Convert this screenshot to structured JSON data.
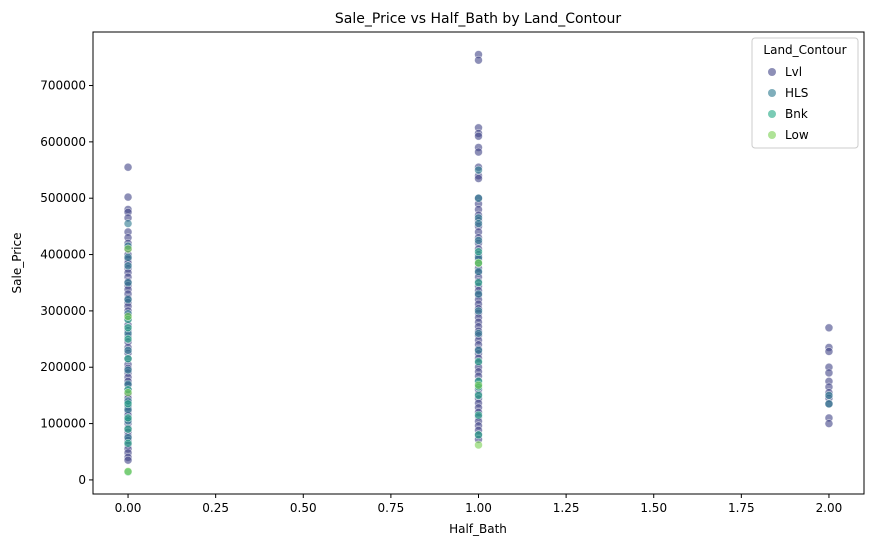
{
  "chart_data": {
    "type": "scatter",
    "title": "Sale_Price vs Half_Bath by Land_Contour",
    "xlabel": "Half_Bath",
    "ylabel": "Sale_Price",
    "xlim": [
      -0.1,
      2.1
    ],
    "ylim": [
      -25000,
      795000
    ],
    "x_ticks": [
      0.0,
      0.25,
      0.5,
      0.75,
      1.0,
      1.25,
      1.5,
      1.75,
      2.0
    ],
    "x_tick_labels": [
      "0.00",
      "0.25",
      "0.50",
      "0.75",
      "1.00",
      "1.25",
      "1.50",
      "1.75",
      "2.00"
    ],
    "y_ticks": [
      0,
      100000,
      200000,
      300000,
      400000,
      500000,
      600000,
      700000
    ],
    "y_tick_labels": [
      "0",
      "100000",
      "200000",
      "300000",
      "400000",
      "500000",
      "600000",
      "700000"
    ],
    "grid": false,
    "legend": {
      "title": "Land_Contour",
      "placement": "top-right"
    },
    "marker_alpha": 0.6,
    "series": [
      {
        "name": "Lvl",
        "color": "#414487",
        "points": [
          [
            0,
            555000
          ],
          [
            0,
            502000
          ],
          [
            0,
            480000
          ],
          [
            0,
            475000
          ],
          [
            0,
            465000
          ],
          [
            0,
            440000
          ],
          [
            0,
            430000
          ],
          [
            0,
            420000
          ],
          [
            0,
            410000
          ],
          [
            0,
            400000
          ],
          [
            0,
            392000
          ],
          [
            0,
            385000
          ],
          [
            0,
            375000
          ],
          [
            0,
            368000
          ],
          [
            0,
            360000
          ],
          [
            0,
            352000
          ],
          [
            0,
            345000
          ],
          [
            0,
            338000
          ],
          [
            0,
            330000
          ],
          [
            0,
            322000
          ],
          [
            0,
            315000
          ],
          [
            0,
            308000
          ],
          [
            0,
            300000
          ],
          [
            0,
            292000
          ],
          [
            0,
            285000
          ],
          [
            0,
            275000
          ],
          [
            0,
            265000
          ],
          [
            0,
            255000
          ],
          [
            0,
            245000
          ],
          [
            0,
            235000
          ],
          [
            0,
            225000
          ],
          [
            0,
            215000
          ],
          [
            0,
            205000
          ],
          [
            0,
            198000
          ],
          [
            0,
            190000
          ],
          [
            0,
            182000
          ],
          [
            0,
            175000
          ],
          [
            0,
            168000
          ],
          [
            0,
            160000
          ],
          [
            0,
            152000
          ],
          [
            0,
            145000
          ],
          [
            0,
            138000
          ],
          [
            0,
            130000
          ],
          [
            0,
            122000
          ],
          [
            0,
            115000
          ],
          [
            0,
            108000
          ],
          [
            0,
            100000
          ],
          [
            0,
            92000
          ],
          [
            0,
            85000
          ],
          [
            0,
            78000
          ],
          [
            0,
            70000
          ],
          [
            0,
            62000
          ],
          [
            0,
            55000
          ],
          [
            0,
            48000
          ],
          [
            0,
            40000
          ],
          [
            0,
            35000
          ],
          [
            1,
            755000
          ],
          [
            1,
            745000
          ],
          [
            1,
            625000
          ],
          [
            1,
            615000
          ],
          [
            1,
            610000
          ],
          [
            1,
            590000
          ],
          [
            1,
            582000
          ],
          [
            1,
            555000
          ],
          [
            1,
            540000
          ],
          [
            1,
            535000
          ],
          [
            1,
            500000
          ],
          [
            1,
            490000
          ],
          [
            1,
            480000
          ],
          [
            1,
            470000
          ],
          [
            1,
            460000
          ],
          [
            1,
            450000
          ],
          [
            1,
            440000
          ],
          [
            1,
            430000
          ],
          [
            1,
            420000
          ],
          [
            1,
            410000
          ],
          [
            1,
            400000
          ],
          [
            1,
            392000
          ],
          [
            1,
            384000
          ],
          [
            1,
            376000
          ],
          [
            1,
            368000
          ],
          [
            1,
            360000
          ],
          [
            1,
            352000
          ],
          [
            1,
            344000
          ],
          [
            1,
            336000
          ],
          [
            1,
            328000
          ],
          [
            1,
            320000
          ],
          [
            1,
            312000
          ],
          [
            1,
            304000
          ],
          [
            1,
            296000
          ],
          [
            1,
            288000
          ],
          [
            1,
            280000
          ],
          [
            1,
            272000
          ],
          [
            1,
            264000
          ],
          [
            1,
            256000
          ],
          [
            1,
            248000
          ],
          [
            1,
            240000
          ],
          [
            1,
            232000
          ],
          [
            1,
            224000
          ],
          [
            1,
            216000
          ],
          [
            1,
            208000
          ],
          [
            1,
            200000
          ],
          [
            1,
            192000
          ],
          [
            1,
            184000
          ],
          [
            1,
            176000
          ],
          [
            1,
            168000
          ],
          [
            1,
            160000
          ],
          [
            1,
            152000
          ],
          [
            1,
            144000
          ],
          [
            1,
            136000
          ],
          [
            1,
            128000
          ],
          [
            1,
            120000
          ],
          [
            1,
            112000
          ],
          [
            1,
            104000
          ],
          [
            1,
            96000
          ],
          [
            1,
            88000
          ],
          [
            1,
            80000
          ],
          [
            1,
            72000
          ],
          [
            2,
            270000
          ],
          [
            2,
            235000
          ],
          [
            2,
            228000
          ],
          [
            2,
            200000
          ],
          [
            2,
            190000
          ],
          [
            2,
            175000
          ],
          [
            2,
            165000
          ],
          [
            2,
            155000
          ],
          [
            2,
            145000
          ],
          [
            2,
            135000
          ],
          [
            2,
            110000
          ],
          [
            2,
            100000
          ]
        ]
      },
      {
        "name": "HLS",
        "color": "#2a788e",
        "points": [
          [
            0,
            455000
          ],
          [
            0,
            415000
          ],
          [
            0,
            395000
          ],
          [
            0,
            380000
          ],
          [
            0,
            350000
          ],
          [
            0,
            320000
          ],
          [
            0,
            295000
          ],
          [
            0,
            260000
          ],
          [
            0,
            230000
          ],
          [
            0,
            195000
          ],
          [
            0,
            170000
          ],
          [
            0,
            140000
          ],
          [
            0,
            125000
          ],
          [
            0,
            105000
          ],
          [
            0,
            75000
          ],
          [
            1,
            550000
          ],
          [
            1,
            500000
          ],
          [
            1,
            465000
          ],
          [
            1,
            455000
          ],
          [
            1,
            425000
          ],
          [
            1,
            395000
          ],
          [
            1,
            370000
          ],
          [
            1,
            330000
          ],
          [
            1,
            300000
          ],
          [
            1,
            260000
          ],
          [
            1,
            230000
          ],
          [
            1,
            170000
          ],
          [
            2,
            150000
          ],
          [
            2,
            135000
          ]
        ]
      },
      {
        "name": "Bnk",
        "color": "#22a884",
        "points": [
          [
            0,
            285000
          ],
          [
            0,
            270000
          ],
          [
            0,
            250000
          ],
          [
            0,
            215000
          ],
          [
            0,
            160000
          ],
          [
            0,
            135000
          ],
          [
            0,
            110000
          ],
          [
            0,
            90000
          ],
          [
            0,
            65000
          ],
          [
            0,
            14000
          ],
          [
            1,
            405000
          ],
          [
            1,
            385000
          ],
          [
            1,
            350000
          ],
          [
            1,
            210000
          ],
          [
            1,
            175000
          ],
          [
            1,
            165000
          ],
          [
            1,
            150000
          ],
          [
            1,
            115000
          ],
          [
            1,
            80000
          ]
        ]
      },
      {
        "name": "Low",
        "color": "#7ad151",
        "points": [
          [
            0,
            410000
          ],
          [
            0,
            290000
          ],
          [
            0,
            155000
          ],
          [
            0,
            15000
          ],
          [
            1,
            385000
          ],
          [
            1,
            168000
          ],
          [
            1,
            62000
          ]
        ]
      }
    ]
  }
}
